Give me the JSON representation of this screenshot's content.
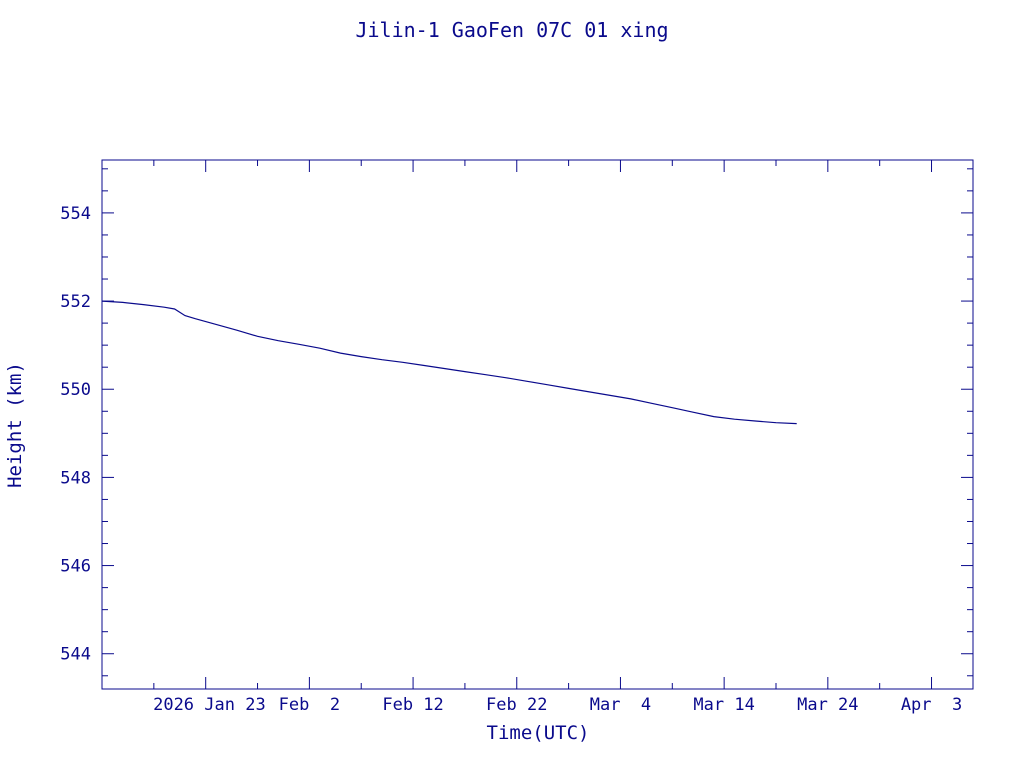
{
  "chart_data": {
    "type": "line",
    "title": "Jilin-1 GaoFen 07C 01 xing",
    "xlabel": "Time(UTC)",
    "ylabel": "Height (km)",
    "xlim": [
      "2026-01-13",
      "2026-04-07"
    ],
    "ylim": [
      543.2,
      555.2
    ],
    "x_ticks": [
      {
        "date": "2026-01-23",
        "label": "2026 Jan 23"
      },
      {
        "date": "2026-02-02",
        "label": "Feb  2"
      },
      {
        "date": "2026-02-12",
        "label": "Feb 12"
      },
      {
        "date": "2026-02-22",
        "label": "Feb 22"
      },
      {
        "date": "2026-03-04",
        "label": "Mar  4"
      },
      {
        "date": "2026-03-14",
        "label": "Mar 14"
      },
      {
        "date": "2026-03-24",
        "label": "Mar 24"
      },
      {
        "date": "2026-04-03",
        "label": "Apr  3"
      }
    ],
    "y_ticks": [
      544,
      546,
      548,
      550,
      552,
      554
    ],
    "grid": false,
    "color": "#0a0a8c",
    "series": [
      {
        "x": [
          "2026-01-13",
          "2026-01-15",
          "2026-01-17",
          "2026-01-19",
          "2026-01-20",
          "2026-01-21",
          "2026-01-22",
          "2026-01-24",
          "2026-01-26",
          "2026-01-28",
          "2026-01-30",
          "2026-02-01",
          "2026-02-03",
          "2026-02-05",
          "2026-02-07",
          "2026-02-09",
          "2026-02-11",
          "2026-02-13",
          "2026-02-15",
          "2026-02-17",
          "2026-02-19",
          "2026-02-21",
          "2026-02-23",
          "2026-02-25",
          "2026-02-27",
          "2026-03-01",
          "2026-03-03",
          "2026-03-05",
          "2026-03-07",
          "2026-03-09",
          "2026-03-11",
          "2026-03-13",
          "2026-03-15",
          "2026-03-17",
          "2026-03-19",
          "2026-03-21"
        ],
        "y": [
          552.0,
          551.97,
          551.92,
          551.86,
          551.82,
          551.67,
          551.6,
          551.47,
          551.34,
          551.2,
          551.1,
          551.02,
          550.93,
          550.82,
          550.74,
          550.67,
          550.61,
          550.54,
          550.47,
          550.4,
          550.33,
          550.26,
          550.18,
          550.1,
          550.02,
          549.94,
          549.86,
          549.78,
          549.68,
          549.58,
          549.48,
          549.38,
          549.32,
          549.28,
          549.24,
          549.22
        ]
      }
    ]
  }
}
